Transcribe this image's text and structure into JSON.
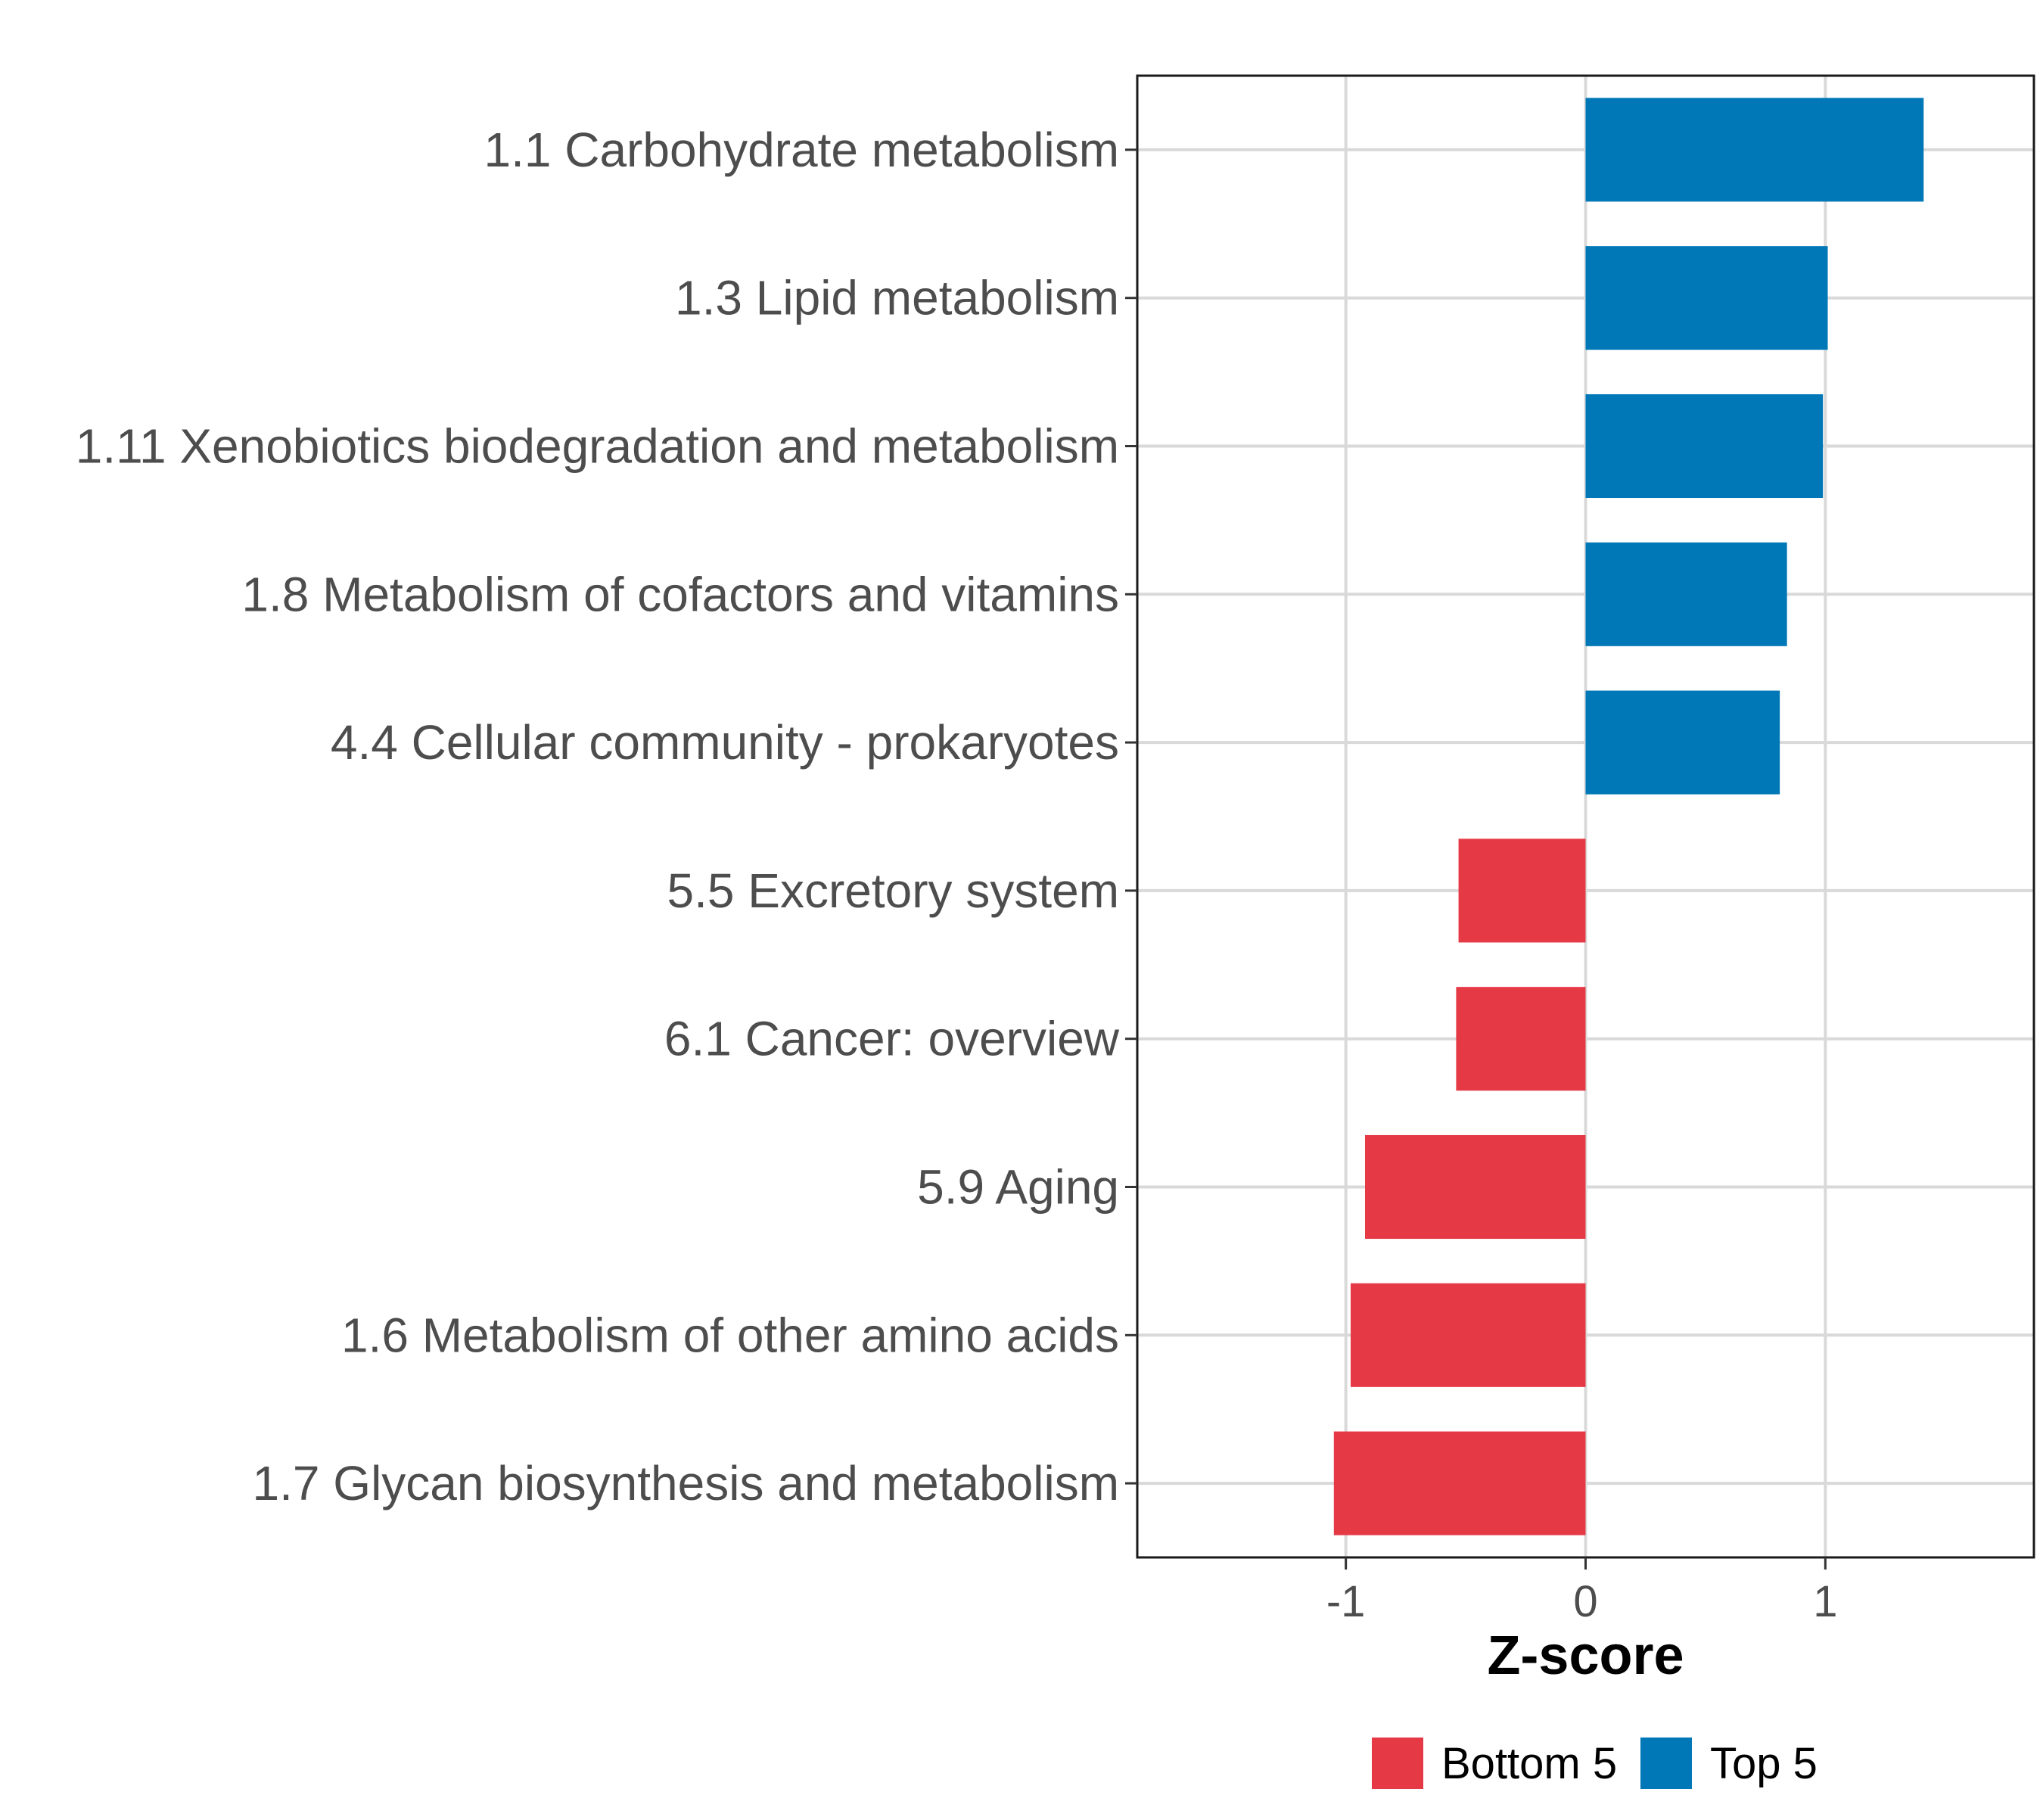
{
  "chart_data": {
    "type": "bar",
    "orientation": "horizontal",
    "title": "",
    "xlabel": "Z-score",
    "ylabel": "",
    "xlim": [
      -1.87,
      1.87
    ],
    "xticks": [
      -1,
      0,
      1
    ],
    "xtick_labels": [
      "-1",
      "0",
      "1"
    ],
    "grid": true,
    "legend_position": "bottom",
    "categories": [
      "1.1 Carbohydrate metabolism",
      "1.3 Lipid metabolism",
      "1.11 Xenobiotics biodegradation and metabolism",
      "1.8 Metabolism of cofactors and vitamins",
      "4.4 Cellular community - prokaryotes",
      "5.5 Excretory system",
      "6.1 Cancer: overview",
      "5.9 Aging",
      "1.6 Metabolism of other amino acids",
      "1.7 Glycan biosynthesis and metabolism"
    ],
    "values": [
      1.41,
      1.01,
      0.99,
      0.84,
      0.81,
      -0.53,
      -0.54,
      -0.92,
      -0.98,
      -1.05
    ],
    "groups": [
      "Top 5",
      "Top 5",
      "Top 5",
      "Top 5",
      "Top 5",
      "Bottom 5",
      "Bottom 5",
      "Bottom 5",
      "Bottom 5",
      "Bottom 5"
    ],
    "legend": [
      {
        "label": "Bottom 5",
        "color": "#e63946"
      },
      {
        "label": "Top 5",
        "color": "#0077b6"
      }
    ]
  }
}
